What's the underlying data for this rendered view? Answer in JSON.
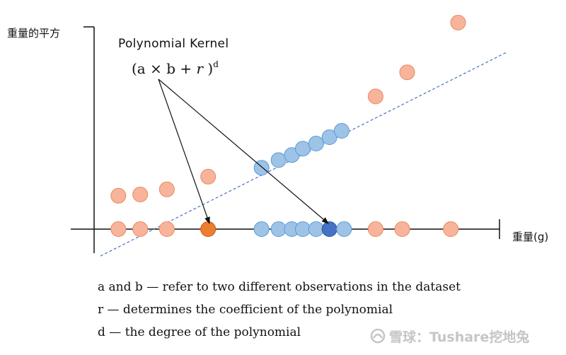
{
  "axes": {
    "y_label": "重量的平方",
    "x_label": "重量(g)"
  },
  "kernel": {
    "title": "Polynomial Kernel",
    "formula_open": "(a × b + ",
    "formula_r": "r",
    "formula_close": " )",
    "formula_exp": "d"
  },
  "notes": [
    "a and b — refer to two different observations in the dataset",
    "r — determines the coefficient of the polynomial",
    "d — the degree of the polynomial"
  ],
  "watermark": "雪球：Tushare挖地兔",
  "colors": {
    "orange_fill": "#f7b49a",
    "orange_stroke": "#e8895f",
    "blue_fill": "#9dc3e6",
    "blue_stroke": "#5b9bd5",
    "highlight_orange": "#ed7d31",
    "highlight_blue": "#4472c4",
    "trend_line": "#4472c4"
  },
  "points": {
    "on_axis": [
      {
        "cls": "orange",
        "w": 1.0
      },
      {
        "cls": "orange",
        "w": 1.9
      },
      {
        "cls": "orange",
        "w": 3.0
      },
      {
        "cls": "orange",
        "w": 4.7,
        "highlight": true
      },
      {
        "cls": "blue",
        "w": 6.9
      },
      {
        "cls": "blue",
        "w": 7.6
      },
      {
        "cls": "blue",
        "w": 8.15
      },
      {
        "cls": "blue",
        "w": 8.6
      },
      {
        "cls": "blue",
        "w": 9.15
      },
      {
        "cls": "blue",
        "w": 9.7,
        "highlight": true
      },
      {
        "cls": "blue",
        "w": 10.3
      },
      {
        "cls": "orange",
        "w": 11.6
      },
      {
        "cls": "orange",
        "w": 12.7
      },
      {
        "cls": "orange",
        "w": 14.7
      }
    ],
    "lifted": [
      {
        "cls": "orange",
        "w": 1.0,
        "h": 0.7
      },
      {
        "cls": "orange",
        "w": 1.9,
        "h": 0.75
      },
      {
        "cls": "orange",
        "w": 3.0,
        "h": 0.95
      },
      {
        "cls": "orange",
        "w": 4.7,
        "h": 1.45
      },
      {
        "cls": "blue",
        "w": 6.9,
        "h": 1.8
      },
      {
        "cls": "blue",
        "w": 7.6,
        "h": 2.1
      },
      {
        "cls": "blue",
        "w": 8.15,
        "h": 2.3
      },
      {
        "cls": "blue",
        "w": 8.6,
        "h": 2.55
      },
      {
        "cls": "blue",
        "w": 9.15,
        "h": 2.75
      },
      {
        "cls": "blue",
        "w": 9.7,
        "h": 3.0
      },
      {
        "cls": "blue",
        "w": 10.2,
        "h": 3.25
      },
      {
        "cls": "orange",
        "w": 11.6,
        "h": 4.6
      },
      {
        "cls": "orange",
        "w": 12.9,
        "h": 5.55
      },
      {
        "cls": "orange",
        "w": 15.0,
        "h": 7.5
      }
    ]
  }
}
